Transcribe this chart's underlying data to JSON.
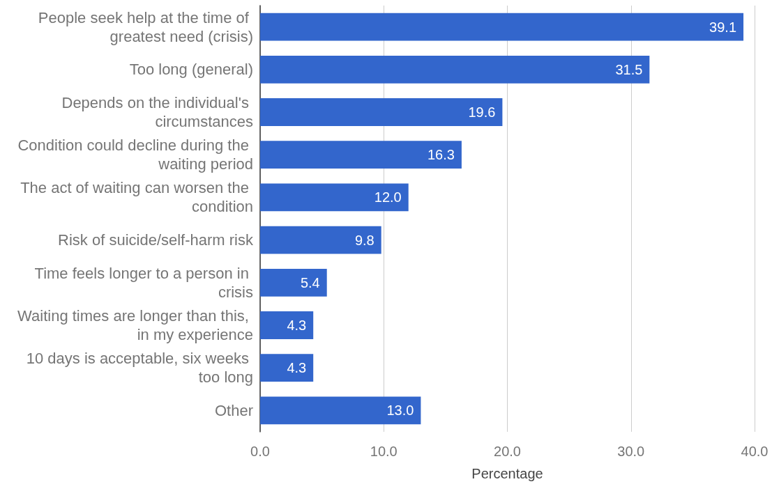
{
  "chart_data": {
    "type": "bar",
    "orientation": "horizontal",
    "xlabel": "Percentage",
    "categories": [
      "People seek help at the time of greatest need (crisis)",
      "Too long (general)",
      "Depends on the individual's circumstances",
      "Condition could decline during the waiting period",
      "The act of waiting can worsen the condition",
      "Risk of suicide/self-harm risk",
      "Time feels longer to a person in crisis",
      "Waiting times are longer than this, in my experience",
      "10 days is acceptable, six weeks too long",
      "Other"
    ],
    "values": [
      39.1,
      31.5,
      19.6,
      16.3,
      12.0,
      9.8,
      5.4,
      4.3,
      4.3,
      13.0
    ],
    "value_labels": [
      "39.1",
      "31.5",
      "19.6",
      "16.3",
      "12.0",
      "9.8",
      "5.4",
      "4.3",
      "4.3",
      "13.0"
    ],
    "color": "#3366cc",
    "xlim": [
      0,
      40
    ],
    "xticks": [
      {
        "value": 0,
        "label": "0.0"
      },
      {
        "value": 10,
        "label": "10.0"
      },
      {
        "value": 20,
        "label": "20.0"
      },
      {
        "value": 30,
        "label": "30.0"
      },
      {
        "value": 40,
        "label": "40.0"
      }
    ],
    "grid": "x"
  }
}
